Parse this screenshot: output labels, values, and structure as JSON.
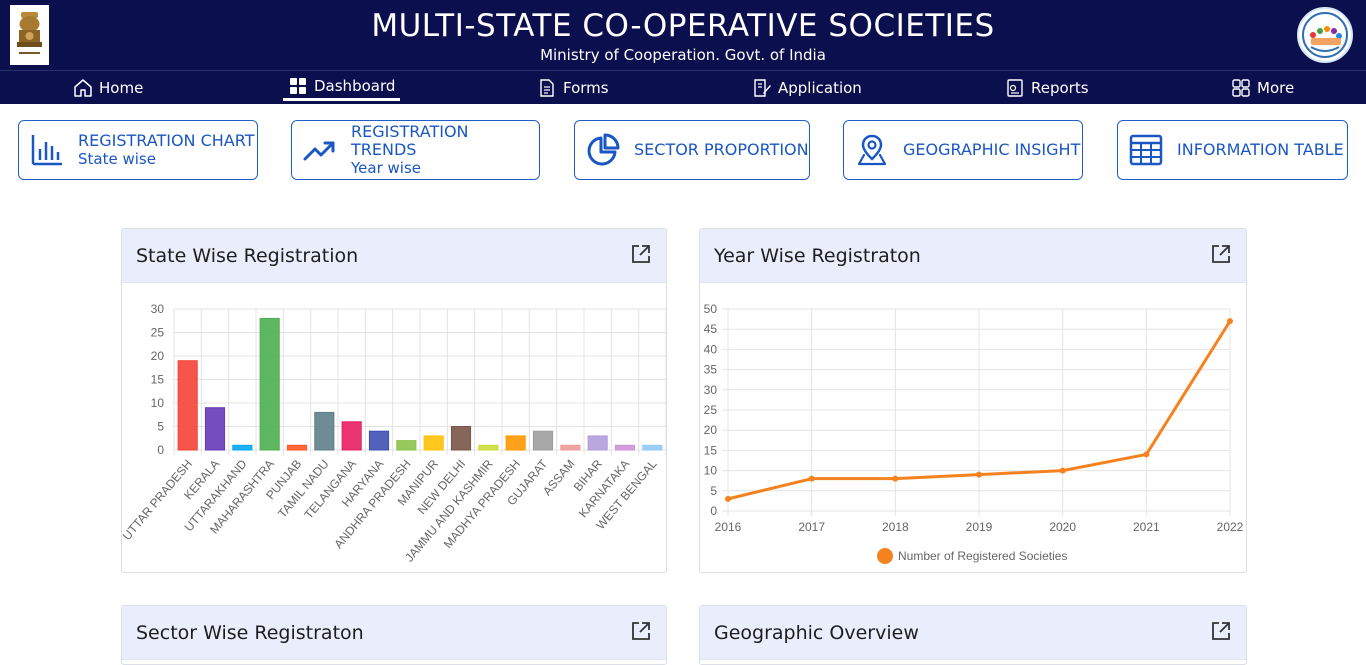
{
  "header": {
    "title": "MULTI-STATE CO-OPERATIVE SOCIETIES",
    "subtitle": "Ministry of Cooperation. Govt. of India",
    "emblem_caption": "सत्यमेव जयते",
    "logo_text": "Multi State Cooperative Societies"
  },
  "nav": {
    "items": [
      {
        "label": "Home",
        "icon": "home-icon"
      },
      {
        "label": "Dashboard",
        "icon": "dashboard-icon"
      },
      {
        "label": "Forms",
        "icon": "document-icon"
      },
      {
        "label": "Application",
        "icon": "edit-document-icon"
      },
      {
        "label": "Reports",
        "icon": "report-icon"
      },
      {
        "label": "More",
        "icon": "grid-icon"
      }
    ],
    "active": "Dashboard"
  },
  "quick_cards": [
    {
      "title": "REGISTRATION CHART",
      "subtitle": "State wise",
      "icon": "bar-chart-icon"
    },
    {
      "title": "REGISTRATION TRENDS",
      "subtitle": "Year wise",
      "icon": "trend-up-icon"
    },
    {
      "title": "SECTOR PROPORTION",
      "subtitle": "",
      "icon": "pie-chart-icon"
    },
    {
      "title": "GEOGRAPHIC INSIGHT",
      "subtitle": "",
      "icon": "map-pin-icon"
    },
    {
      "title": "INFORMATION TABLE",
      "subtitle": "",
      "icon": "table-icon"
    }
  ],
  "panels": {
    "state_wise": {
      "title": "State Wise Registration"
    },
    "year_wise": {
      "title": "Year Wise Registraton"
    },
    "sector_wise": {
      "title": "Sector Wise Registraton"
    },
    "geographic": {
      "title": "Geographic Overview"
    }
  },
  "chart_data": [
    {
      "type": "bar",
      "title": "State Wise Registration",
      "categories": [
        "UTTAR PRADESH",
        "KERALA",
        "UTTARAKHAND",
        "MAHARASHTRA",
        "PUNJAB",
        "TAMIL NADU",
        "TELANGANA",
        "HARYANA",
        "ANDHRA PRADESH",
        "MANIPUR",
        "NEW DELHI",
        "JAMMU AND KASHMIR",
        "MADHYA PRADESH",
        "GUJARAT",
        "ASSAM",
        "BIHAR",
        "KARNATAKA",
        "WEST BENGAL"
      ],
      "values": [
        19,
        9,
        1,
        28,
        1,
        8,
        6,
        4,
        2,
        3,
        5,
        1,
        3,
        4,
        1,
        3,
        1,
        1
      ],
      "colors": [
        "#f44336",
        "#673ab7",
        "#03a9f4",
        "#4caf50",
        "#ff5722",
        "#607d8b",
        "#e91e63",
        "#3f51b5",
        "#8bc34a",
        "#ffc107",
        "#795548",
        "#cddc39",
        "#ff9800",
        "#9e9e9e",
        "#ef9a9a",
        "#b39ddb",
        "#ce93d8",
        "#90caf9"
      ],
      "ylim": [
        0,
        30
      ],
      "yticks": [
        0,
        5,
        10,
        15,
        20,
        25,
        30
      ],
      "grid": true
    },
    {
      "type": "line",
      "title": "Year Wise Registraton",
      "x": [
        "2016",
        "2017",
        "2018",
        "2019",
        "2020",
        "2021",
        "2022"
      ],
      "series": [
        {
          "name": "Number of Registered Societies",
          "values": [
            3,
            8,
            8,
            9,
            10,
            14,
            47
          ],
          "color": "#f5821f"
        }
      ],
      "ylim": [
        0,
        50
      ],
      "yticks": [
        0,
        5,
        10,
        15,
        20,
        25,
        30,
        35,
        40,
        45,
        50
      ],
      "legend": "bottom",
      "grid": true
    }
  ]
}
